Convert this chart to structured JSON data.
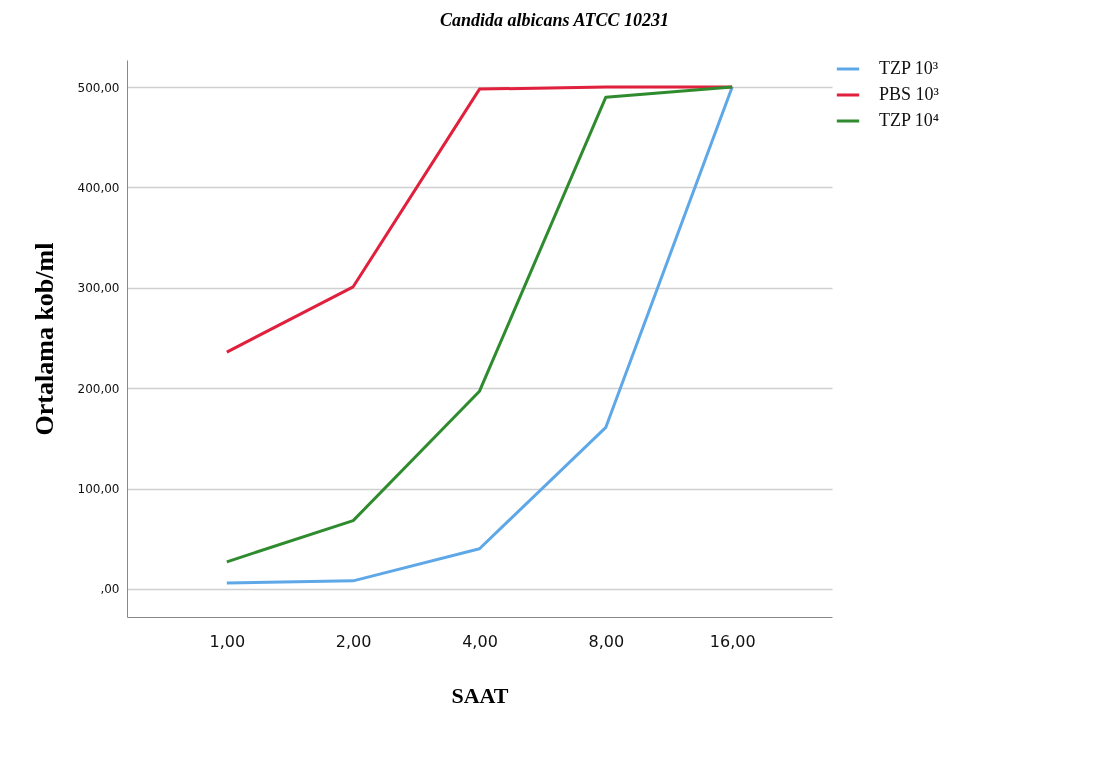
{
  "chart_data": {
    "type": "line",
    "title": "Candida albicans ATCC 10231",
    "xlabel": "SAAT",
    "ylabel": "Ortalama    kob/ml",
    "categories": [
      "1,00",
      "2,00",
      "4,00",
      "8,00",
      "16,00"
    ],
    "series": [
      {
        "name": "TZP 10³",
        "color": "#5fa8e8",
        "values": [
          6,
          8,
          40,
          161,
          500
        ]
      },
      {
        "name": "PBS 10³",
        "color": "#e0203c",
        "values": [
          236,
          301,
          498,
          500,
          500
        ]
      },
      {
        "name": "TZP 10⁴",
        "color": "#2e8b2e",
        "values": [
          27,
          68,
          197,
          490,
          500
        ]
      }
    ],
    "ylim": [
      -28,
      527
    ],
    "yticks": [
      {
        "value": 0,
        "label": ",00"
      },
      {
        "value": 100,
        "label": "100,00"
      },
      {
        "value": 200,
        "label": "200,00"
      },
      {
        "value": 300,
        "label": "300,00"
      },
      {
        "value": 400,
        "label": "400,00"
      },
      {
        "value": 500,
        "label": "500,00"
      }
    ],
    "grid": "y",
    "legend": "top right"
  }
}
